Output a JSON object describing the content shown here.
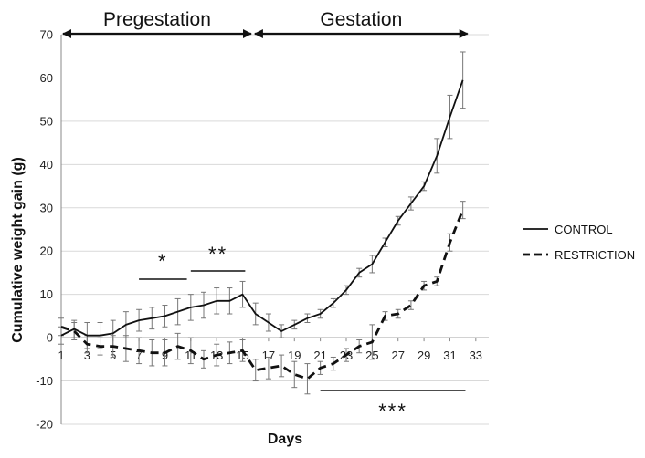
{
  "chart_data": {
    "type": "line",
    "title": "",
    "xlabel": "Days",
    "ylabel": "Cumulative weight gain (g)",
    "xlim": [
      1,
      34
    ],
    "ylim": [
      -20,
      70
    ],
    "x_ticks": [
      1,
      3,
      5,
      7,
      9,
      11,
      13,
      15,
      17,
      19,
      21,
      23,
      25,
      27,
      29,
      31,
      33
    ],
    "y_ticks": [
      -20,
      -10,
      0,
      10,
      20,
      30,
      40,
      50,
      60,
      70
    ],
    "grid": "horizontal",
    "legend_position": "right",
    "phases": [
      {
        "label": "Pregestation",
        "from": 1,
        "to": 15.8
      },
      {
        "label": "Gestation",
        "from": 15.8,
        "to": 32.5
      }
    ],
    "significance": [
      {
        "label": "*",
        "from": 7,
        "to": 10.7
      },
      {
        "label": "**",
        "from": 11,
        "to": 15.2
      },
      {
        "label": "***",
        "from": 21,
        "to": 32.2
      }
    ],
    "series": [
      {
        "name": "CONTROL",
        "style": "solid",
        "x": [
          1,
          2,
          3,
          4,
          5,
          6,
          7,
          8,
          9,
          10,
          11,
          12,
          13,
          14,
          15,
          16,
          17,
          18,
          19,
          20,
          21,
          22,
          23,
          24,
          25,
          26,
          27,
          28,
          29,
          30,
          31,
          32
        ],
        "values": [
          0.5,
          2,
          0.5,
          0.5,
          1,
          3,
          4,
          4.5,
          5,
          6,
          7,
          7.5,
          8.5,
          8.5,
          10,
          5.5,
          3.5,
          1.5,
          3,
          4.5,
          5.5,
          8,
          11,
          15,
          17,
          22,
          27,
          31,
          35,
          42,
          51,
          59.5
        ],
        "errors": [
          2,
          2,
          3,
          3,
          3,
          3,
          2.5,
          2.5,
          2.5,
          3,
          3,
          3,
          3,
          3,
          3,
          2.5,
          2,
          1.5,
          1,
          1,
          1,
          1,
          1,
          1,
          2,
          1,
          1,
          1.5,
          1,
          4,
          5,
          6.5
        ]
      },
      {
        "name": "RESTRICTION",
        "style": "dashed",
        "x": [
          1,
          2,
          3,
          4,
          5,
          6,
          7,
          8,
          9,
          10,
          11,
          12,
          13,
          14,
          15,
          16,
          17,
          18,
          19,
          20,
          21,
          22,
          23,
          24,
          25,
          26,
          27,
          28,
          29,
          30,
          31,
          32
        ],
        "values": [
          2.5,
          1.5,
          -1.5,
          -2,
          -2,
          -2.5,
          -3,
          -3.5,
          -3.5,
          -2,
          -3,
          -5,
          -4,
          -3.5,
          -3,
          -7.5,
          -7,
          -6.5,
          -8.5,
          -9.5,
          -7,
          -6,
          -4,
          -2,
          -1,
          5,
          5.5,
          7.5,
          12,
          13,
          22,
          29.5
        ],
        "errors": [
          2,
          2,
          2,
          2,
          2.5,
          3,
          3,
          3,
          3,
          3,
          3,
          2,
          2.5,
          2.5,
          2.5,
          2.5,
          2.5,
          2.5,
          3,
          3.5,
          1.5,
          1.5,
          1.5,
          1.5,
          4,
          1,
          1,
          1,
          1,
          1,
          2,
          2
        ]
      }
    ]
  }
}
